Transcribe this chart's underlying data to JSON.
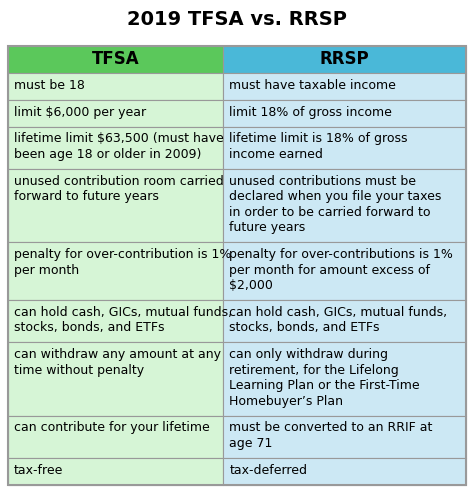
{
  "title": "2019 TFSA vs. RRSP",
  "col1_header": "TFSA",
  "col2_header": "RRSP",
  "header_color1": "#5bc85b",
  "header_color2": "#4ab8d8",
  "row_color1_light": "#d6f5d6",
  "row_color2_light": "#cce8f4",
  "border_color": "#999999",
  "rows": [
    [
      "must be 18",
      "must have taxable income"
    ],
    [
      "limit $6,000 per year",
      "limit 18% of gross income"
    ],
    [
      "lifetime limit $63,500 (must have\nbeen age 18 or older in 2009)",
      "lifetime limit is 18% of gross\nincome earned"
    ],
    [
      "unused contribution room carried\nforward to future years",
      "unused contributions must be\ndeclared when you file your taxes\nin order to be carried forward to\nfuture years"
    ],
    [
      "penalty for over-contribution is 1%\nper month",
      "penalty for over-contributions is 1%\nper month for amount excess of\n$2,000"
    ],
    [
      "can hold cash, GICs, mutual funds,\nstocks, bonds, and ETFs",
      "can hold cash, GICs, mutual funds,\nstocks, bonds, and ETFs"
    ],
    [
      "can withdraw any amount at any\ntime without penalty",
      "can only withdraw during\nretirement, for the Lifelong\nLearning Plan or the First-Time\nHomebuyer’s Plan"
    ],
    [
      "can contribute for your lifetime",
      "must be converted to an RRIF at\nage 71"
    ],
    [
      "tax-free",
      "tax-deferred"
    ]
  ],
  "background_color": "#ffffff",
  "title_fontsize": 14,
  "cell_fontsize": 9,
  "header_fontsize": 12,
  "row_line_counts": [
    1,
    1,
    2,
    4,
    3,
    2,
    4,
    2,
    1
  ],
  "header_line_count": 1
}
